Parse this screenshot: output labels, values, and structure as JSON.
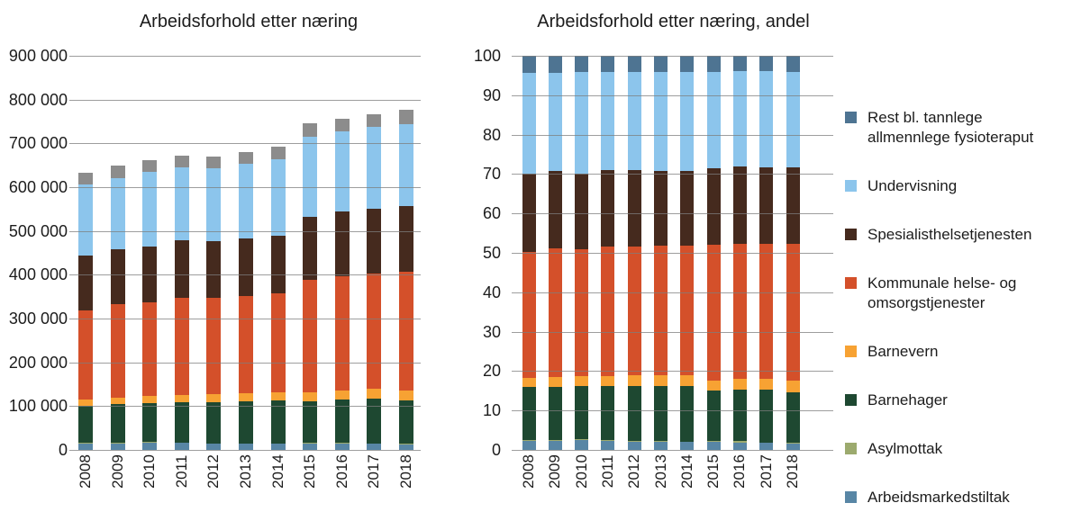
{
  "figure": {
    "background": "#ffffff"
  },
  "colors": {
    "arbeidsmarkedstiltak": "#5886A5",
    "asylmottak": "#9CAA6E",
    "barnehager": "#1E4831",
    "barnevern": "#F7A233",
    "kommunale": "#D4502A",
    "spesialisthelsetjenesten": "#452A1E",
    "undervisning": "#8CC5EC",
    "rest_left": "#8C8C8C",
    "rest_right": "#4E7492",
    "gridline": "#7D7D7D",
    "text": "#1c1c1c"
  },
  "chart_data": [
    {
      "type": "bar",
      "stacked": true,
      "title": "Arbeidsforhold etter næring",
      "categories": [
        "2008",
        "2009",
        "2010",
        "2011",
        "2012",
        "2013",
        "2014",
        "2015",
        "2016",
        "2017",
        "2018"
      ],
      "ylim": [
        0,
        900000
      ],
      "y_tick_labels": [
        "900 000",
        "800 000",
        "700 000",
        "600 000",
        "500 000",
        "400 000",
        "300 000",
        "200 000",
        "100 000",
        "0"
      ],
      "grid": true,
      "legend_position": "none",
      "series": [
        {
          "name": "Arbeidsmarkedstiltak",
          "color": "#5886A5",
          "values": [
            15000,
            15000,
            17000,
            16000,
            14000,
            14000,
            14000,
            15000,
            14000,
            14000,
            13000
          ]
        },
        {
          "name": "Asylmottak",
          "color": "#9CAA6E",
          "values": [
            1000,
            1000,
            1000,
            1000,
            1000,
            1000,
            1000,
            2000,
            2000,
            1000,
            1000
          ]
        },
        {
          "name": "Barnehager",
          "color": "#1E4831",
          "values": [
            84000,
            88000,
            89000,
            92000,
            94000,
            96000,
            98000,
            95000,
            100000,
            103000,
            100000
          ]
        },
        {
          "name": "Barnevern",
          "color": "#F7A233",
          "values": [
            16000,
            16000,
            17000,
            17000,
            18000,
            18000,
            18000,
            19000,
            20000,
            21000,
            22000
          ]
        },
        {
          "name": "Kommunale helse- og omsorgstjenester",
          "color": "#D4502A",
          "values": [
            202000,
            212000,
            213000,
            222000,
            220000,
            223000,
            227000,
            258000,
            260000,
            263000,
            270000
          ]
        },
        {
          "name": "Spesialisthelsetjenesten",
          "color": "#452A1E",
          "values": [
            126000,
            127000,
            127000,
            130000,
            130000,
            130000,
            132000,
            144000,
            148000,
            149000,
            150000
          ]
        },
        {
          "name": "Undervisning",
          "color": "#8CC5EC",
          "values": [
            162000,
            162000,
            171000,
            167000,
            167000,
            171000,
            174000,
            183000,
            183000,
            187000,
            189000
          ]
        },
        {
          "name": "Rest bl. tannlege allmennlege fysioteraput",
          "color": "#8C8C8C",
          "values": [
            27000,
            28000,
            27000,
            28000,
            27000,
            27000,
            28000,
            30000,
            29000,
            29000,
            31000
          ]
        }
      ]
    },
    {
      "type": "bar",
      "stacked": true,
      "title": "Arbeidsforhold etter næring, andel",
      "categories": [
        "2008",
        "2009",
        "2010",
        "2011",
        "2012",
        "2013",
        "2014",
        "2015",
        "2016",
        "2017",
        "2018"
      ],
      "ylim": [
        0,
        100
      ],
      "y_tick_labels": [
        "100",
        "90",
        "80",
        "70",
        "60",
        "50",
        "40",
        "30",
        "20",
        "10",
        "0"
      ],
      "grid": true,
      "legend_position": "right",
      "series": [
        {
          "name": "Arbeidsmarkedstiltak",
          "color": "#5886A5",
          "values": [
            2.4,
            2.3,
            2.6,
            2.4,
            2.1,
            2.1,
            2.0,
            2.0,
            1.9,
            1.8,
            1.7
          ]
        },
        {
          "name": "Asylmottak",
          "color": "#9CAA6E",
          "values": [
            0.2,
            0.2,
            0.2,
            0.1,
            0.1,
            0.1,
            0.1,
            0.3,
            0.3,
            0.1,
            0.1
          ]
        },
        {
          "name": "Barnehager",
          "color": "#1E4831",
          "values": [
            13.3,
            13.6,
            13.4,
            13.7,
            14.0,
            14.1,
            14.2,
            12.7,
            13.2,
            13.4,
            12.9
          ]
        },
        {
          "name": "Barnevern",
          "color": "#F7A233",
          "values": [
            2.5,
            2.5,
            2.6,
            2.5,
            2.7,
            2.6,
            2.6,
            2.5,
            2.6,
            2.7,
            2.8
          ]
        },
        {
          "name": "Kommunale helse- og omsorgstjenester",
          "color": "#D4502A",
          "values": [
            31.9,
            32.7,
            32.2,
            33.0,
            32.8,
            32.8,
            32.8,
            34.6,
            34.4,
            34.3,
            34.8
          ]
        },
        {
          "name": "Spesialisthelsetjenesten",
          "color": "#452A1E",
          "values": [
            19.9,
            19.6,
            19.2,
            19.3,
            19.4,
            19.1,
            19.1,
            19.3,
            19.6,
            19.4,
            19.3
          ]
        },
        {
          "name": "Undervisning",
          "color": "#8CC5EC",
          "values": [
            25.6,
            25.0,
            25.8,
            24.8,
            24.9,
            25.1,
            25.1,
            24.5,
            24.2,
            24.4,
            24.4
          ]
        },
        {
          "name": "Rest bl. tannlege allmennlege fysioteraput",
          "color": "#4E7492",
          "values": [
            4.3,
            4.3,
            4.1,
            4.2,
            4.0,
            4.0,
            4.0,
            4.0,
            3.8,
            3.8,
            4.0
          ]
        }
      ]
    }
  ],
  "legend": {
    "items": [
      {
        "label": "Rest bl. tannlege allmennlege fysioteraput",
        "lines": [
          "Rest bl. tannlege",
          "allmennlege fysioteraput"
        ],
        "color": "#4E7492"
      },
      {
        "label": "Undervisning",
        "lines": [
          "Undervisning"
        ],
        "color": "#8CC5EC"
      },
      {
        "label": "Spesialisthelsetjenesten",
        "lines": [
          "Spesialisthelsetjenesten"
        ],
        "color": "#452A1E"
      },
      {
        "label": "Kommunale helse- og omsorgstjenester",
        "lines": [
          "Kommunale helse- og",
          "omsorgstjenester"
        ],
        "color": "#D4502A"
      },
      {
        "label": "Barnevern",
        "lines": [
          "Barnevern"
        ],
        "color": "#F7A233"
      },
      {
        "label": "Barnehager",
        "lines": [
          "Barnehager"
        ],
        "color": "#1E4831"
      },
      {
        "label": "Asylmottak",
        "lines": [
          "Asylmottak"
        ],
        "color": "#9CAA6E"
      },
      {
        "label": "Arbeidsmarkedstiltak",
        "lines": [
          "Arbeidsmarkedstiltak"
        ],
        "color": "#5886A5"
      }
    ]
  }
}
